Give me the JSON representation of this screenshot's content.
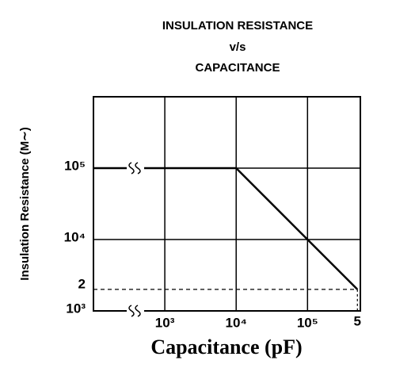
{
  "chart_data": {
    "type": "line",
    "title": [
      "INSULATION RESISTANCE",
      "v/s",
      "CAPACITANCE"
    ],
    "x_label": "Capacitance (pF)",
    "y_label": "Insulation Resistance (M∼)",
    "xscale": "log",
    "yscale": "log",
    "grid": true,
    "xlim": [
      100,
      550000
    ],
    "ylim": [
      1000,
      1000000
    ],
    "xticks": [
      {
        "value": 1000,
        "label": "10³"
      },
      {
        "value": 10000,
        "label": "10⁴"
      },
      {
        "value": 100000,
        "label": "10⁵"
      }
    ],
    "yticks": [
      {
        "value": 1000,
        "label": "10³"
      },
      {
        "value": 10000,
        "label": "10⁴"
      },
      {
        "value": 100000,
        "label": "10⁵"
      }
    ],
    "x": [
      100,
      10000,
      500000
    ],
    "series": [
      {
        "color": "#000000",
        "values": [
          100000,
          100000,
          2000
        ]
      }
    ],
    "guide": {
      "x": 500000,
      "x_label": "5",
      "y": 2000,
      "y_label": "2"
    }
  }
}
